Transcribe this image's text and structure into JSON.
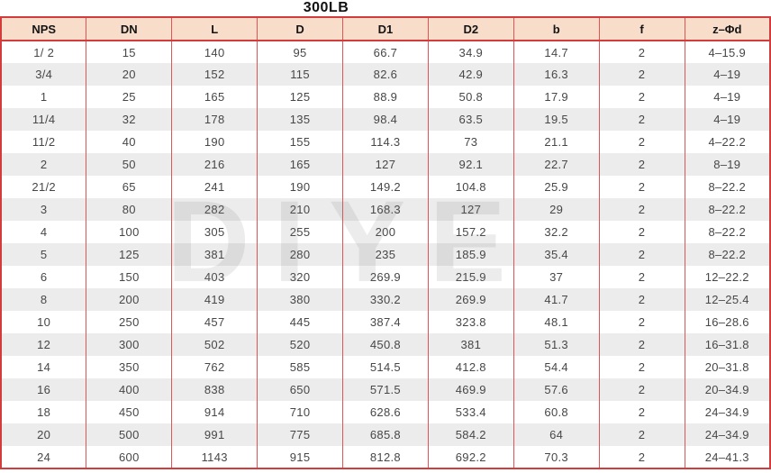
{
  "title": "300LB",
  "watermark": {
    "text": "DIYE"
  },
  "colors": {
    "header_bg": "#f9ddcb",
    "border_outer": "#d23c3c",
    "border_inner": "#e05555",
    "stripe": "#ececec",
    "body_text": "#474747",
    "header_text": "#141414"
  },
  "table": {
    "headers": [
      "NPS",
      "DN",
      "L",
      "D",
      "D1",
      "D2",
      "b",
      "f",
      "z–Φd"
    ],
    "rows": [
      [
        "1/ 2",
        "15",
        "140",
        "95",
        "66.7",
        "34.9",
        "14.7",
        "2",
        "4–15.9"
      ],
      [
        "3/4",
        "20",
        "152",
        "115",
        "82.6",
        "42.9",
        "16.3",
        "2",
        "4–19"
      ],
      [
        "1",
        "25",
        "165",
        "125",
        "88.9",
        "50.8",
        "17.9",
        "2",
        "4–19"
      ],
      [
        "11/4",
        "32",
        "178",
        "135",
        "98.4",
        "63.5",
        "19.5",
        "2",
        "4–19"
      ],
      [
        "11/2",
        "40",
        "190",
        "155",
        "114.3",
        "73",
        "21.1",
        "2",
        "4–22.2"
      ],
      [
        "2",
        "50",
        "216",
        "165",
        "127",
        "92.1",
        "22.7",
        "2",
        "8–19"
      ],
      [
        "21/2",
        "65",
        "241",
        "190",
        "149.2",
        "104.8",
        "25.9",
        "2",
        "8–22.2"
      ],
      [
        "3",
        "80",
        "282",
        "210",
        "168.3",
        "127",
        "29",
        "2",
        "8–22.2"
      ],
      [
        "4",
        "100",
        "305",
        "255",
        "200",
        "157.2",
        "32.2",
        "2",
        "8–22.2"
      ],
      [
        "5",
        "125",
        "381",
        "280",
        "235",
        "185.9",
        "35.4",
        "2",
        "8–22.2"
      ],
      [
        "6",
        "150",
        "403",
        "320",
        "269.9",
        "215.9",
        "37",
        "2",
        "12–22.2"
      ],
      [
        "8",
        "200",
        "419",
        "380",
        "330.2",
        "269.9",
        "41.7",
        "2",
        "12–25.4"
      ],
      [
        "10",
        "250",
        "457",
        "445",
        "387.4",
        "323.8",
        "48.1",
        "2",
        "16–28.6"
      ],
      [
        "12",
        "300",
        "502",
        "520",
        "450.8",
        "381",
        "51.3",
        "2",
        "16–31.8"
      ],
      [
        "14",
        "350",
        "762",
        "585",
        "514.5",
        "412.8",
        "54.4",
        "2",
        "20–31.8"
      ],
      [
        "16",
        "400",
        "838",
        "650",
        "571.5",
        "469.9",
        "57.6",
        "2",
        "20–34.9"
      ],
      [
        "18",
        "450",
        "914",
        "710",
        "628.6",
        "533.4",
        "60.8",
        "2",
        "24–34.9"
      ],
      [
        "20",
        "500",
        "991",
        "775",
        "685.8",
        "584.2",
        "64",
        "2",
        "24–34.9"
      ],
      [
        "24",
        "600",
        "1143",
        "915",
        "812.8",
        "692.2",
        "70.3",
        "2",
        "24–41.3"
      ]
    ]
  }
}
